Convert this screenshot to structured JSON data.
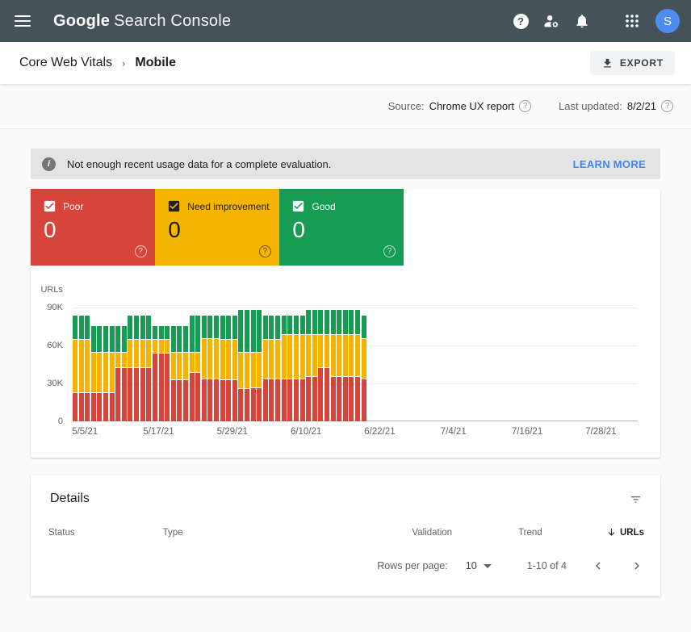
{
  "header": {
    "app_name_primary": "Google",
    "app_name_secondary": "Search Console",
    "avatar_letter": "S"
  },
  "breadcrumb": {
    "section": "Core Web Vitals",
    "separator": "›",
    "current": "Mobile"
  },
  "toolbar": {
    "export_label": "EXPORT"
  },
  "meta": {
    "source_label": "Source:",
    "source_value": "Chrome UX report",
    "updated_label": "Last updated:",
    "updated_value": "8/2/21",
    "help_glyph": "?"
  },
  "banner": {
    "message": "Not enough recent usage data for a complete evaluation.",
    "action_label": "LEARN MORE",
    "info_glyph": "i"
  },
  "status_cards": [
    {
      "label": "Poor",
      "count": "0",
      "color": "#d6453c"
    },
    {
      "label": "Need improvement",
      "count": "0",
      "color": "#f4b400"
    },
    {
      "label": "Good",
      "count": "0",
      "color": "#169c53"
    }
  ],
  "chart_data": {
    "type": "bar",
    "stacked": true,
    "ylabel": "URLs",
    "y_ticks": [
      "90K",
      "60K",
      "30K",
      "0"
    ],
    "ylim": [
      0,
      90000
    ],
    "values_unit": "thousands of URLs per day",
    "x_start_date": "5/3/21",
    "x_end_date_of_axis": "8/2/21",
    "x_total_days": 92,
    "bars_cover": "5/3/21 through 6/19/21 (no data after)",
    "x_ticks": [
      {
        "label": "5/5/21",
        "day": 2
      },
      {
        "label": "5/17/21",
        "day": 14
      },
      {
        "label": "5/29/21",
        "day": 26
      },
      {
        "label": "6/10/21",
        "day": 38
      },
      {
        "label": "6/22/21",
        "day": 50
      },
      {
        "label": "7/4/21",
        "day": 62
      },
      {
        "label": "7/16/21",
        "day": 74
      },
      {
        "label": "7/28/21",
        "day": 86
      }
    ],
    "grid": true,
    "legend_position": "none",
    "series": [
      {
        "name": "Poor",
        "color": "#d6453c",
        "values": [
          23,
          23,
          23,
          23,
          23,
          23,
          23,
          43,
          43,
          43,
          43,
          43,
          43,
          54,
          54,
          54,
          33,
          33,
          33,
          39,
          39,
          34,
          34,
          34,
          33,
          33,
          33,
          26,
          26,
          27,
          27,
          34,
          34,
          34,
          34,
          34,
          34,
          34,
          36,
          36,
          43,
          43,
          36,
          36,
          36,
          36,
          36,
          34
        ]
      },
      {
        "name": "Need improvement",
        "color": "#f4b400",
        "values": [
          42,
          42,
          42,
          32,
          32,
          32,
          32,
          12,
          12,
          22,
          22,
          22,
          22,
          11,
          11,
          11,
          22,
          22,
          22,
          16,
          16,
          32,
          32,
          32,
          32,
          32,
          32,
          29,
          29,
          28,
          28,
          31,
          31,
          31,
          35,
          35,
          35,
          35,
          33,
          33,
          26,
          26,
          33,
          33,
          33,
          33,
          33,
          32
        ]
      },
      {
        "name": "Good",
        "color": "#169c53",
        "values": [
          19,
          19,
          19,
          21,
          21,
          21,
          21,
          21,
          21,
          19,
          19,
          19,
          19,
          11,
          11,
          11,
          21,
          21,
          21,
          29,
          29,
          18,
          18,
          18,
          19,
          19,
          19,
          34,
          34,
          34,
          34,
          19,
          19,
          19,
          15,
          15,
          15,
          15,
          20,
          20,
          20,
          20,
          20,
          20,
          20,
          20,
          20,
          18
        ]
      }
    ]
  },
  "details": {
    "title": "Details",
    "columns": [
      "Status",
      "Type",
      "Validation",
      "Trend",
      "URLs"
    ],
    "sorted_by": "URLs",
    "pagination": {
      "rows_per_page_label": "Rows per page:",
      "rows_per_page_value": "10",
      "range_label": "1-10 of 4"
    }
  }
}
